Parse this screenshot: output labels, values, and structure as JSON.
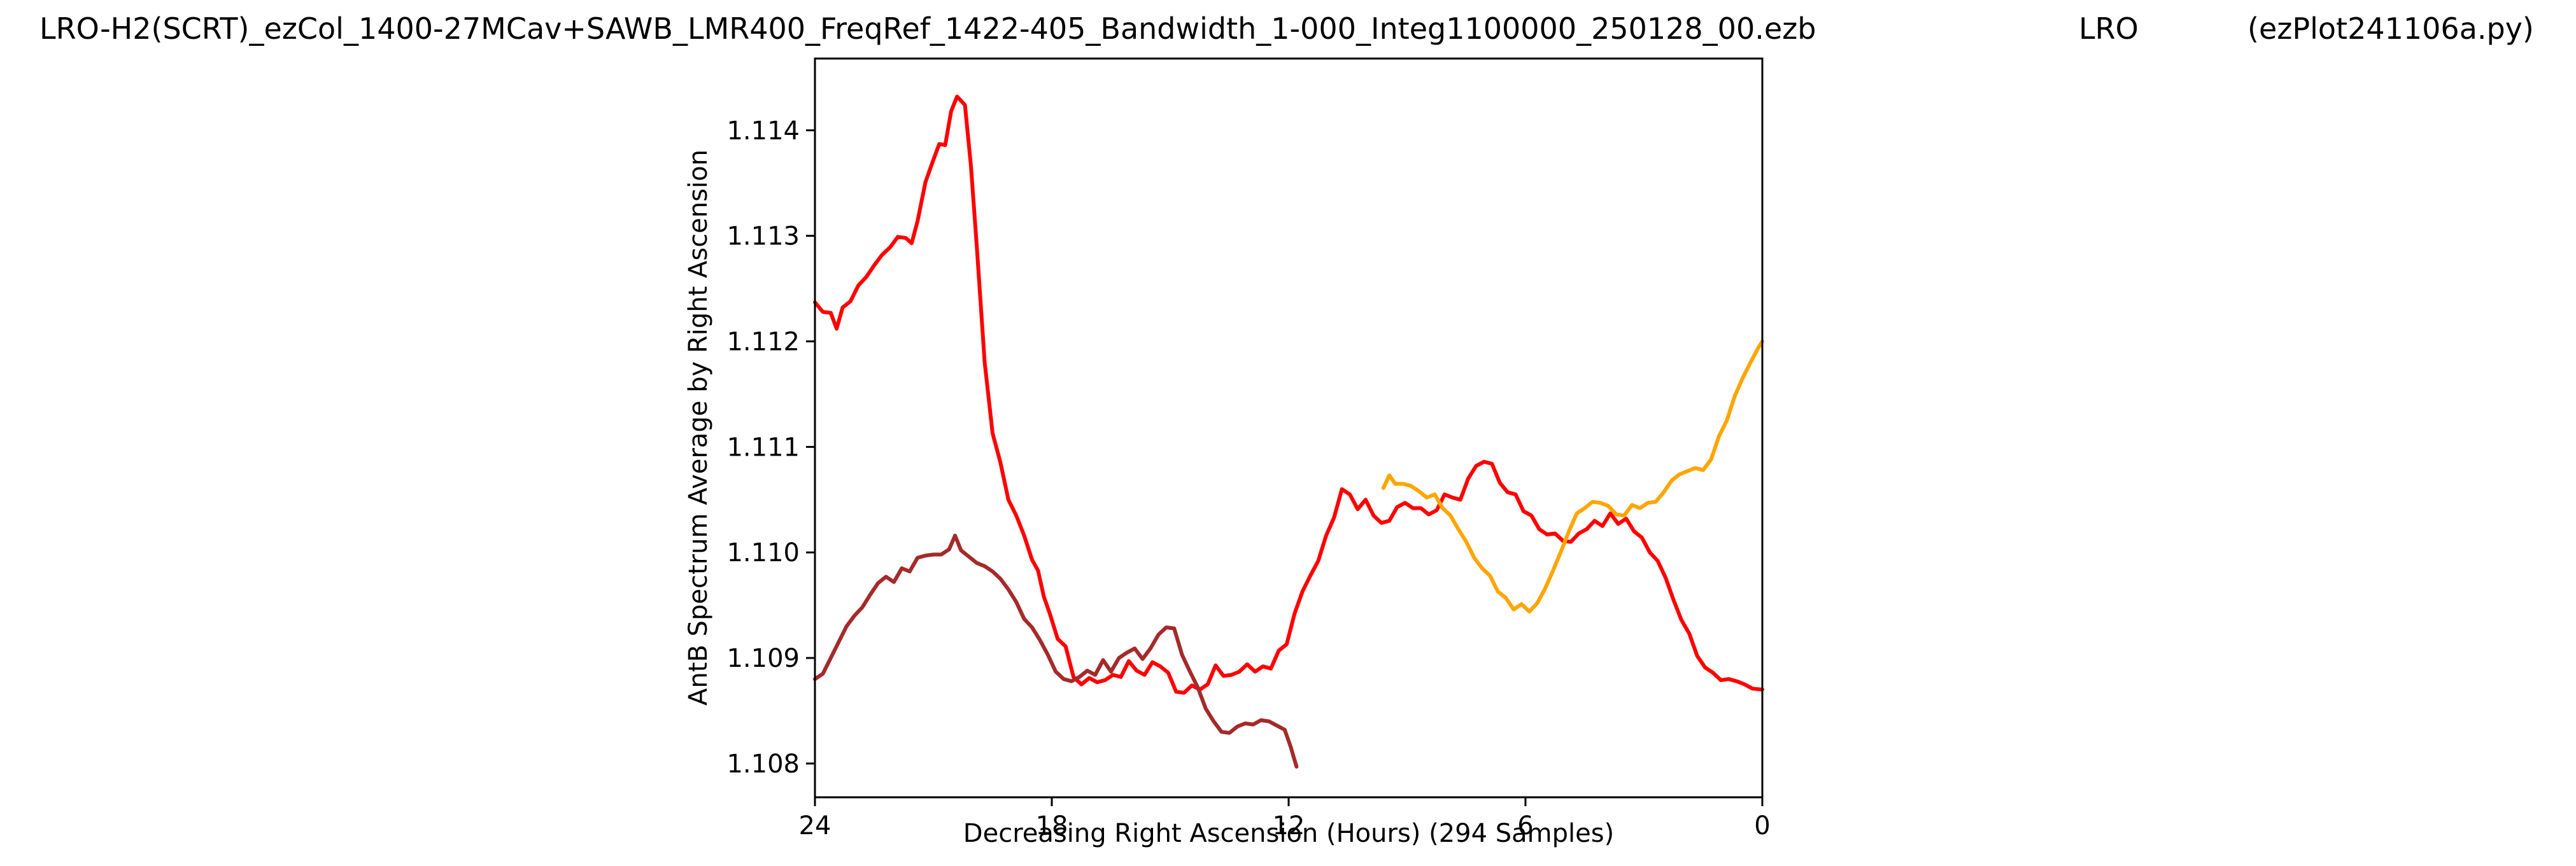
{
  "header": {
    "file": "LRO-H2(SCRT)_ezCol_1400-27MCav+SAWB_LMR400_FreqRef_1422-405_Bandwidth_1-000_Integ1100000_250128_00.ezb",
    "site": "LRO",
    "script": "(ezPlot241106a.py)"
  },
  "chart_data": {
    "type": "line",
    "title": "",
    "xlabel": "Decreasing Right Ascension (Hours) (294 Samples)",
    "ylabel": "AntB Spectrum Average by Right Ascension",
    "xlim": [
      24,
      0
    ],
    "ylim": [
      1.10768,
      1.11468
    ],
    "x_reversed": true,
    "x_ticks": [
      24,
      18,
      12,
      6,
      0
    ],
    "x_tick_labels": [
      "24",
      "18",
      "12",
      "6",
      "0"
    ],
    "y_ticks": [
      1.108,
      1.109,
      1.11,
      1.111,
      1.112,
      1.113,
      1.114
    ],
    "y_tick_labels": [
      "1.108",
      "1.109",
      "1.110",
      "1.111",
      "1.112",
      "1.113",
      "1.114"
    ],
    "grid": false,
    "legend": "none",
    "series": [
      {
        "color": "#ff0000",
        "x": [
          24.0,
          23.8,
          23.6,
          23.45,
          23.3,
          23.1,
          22.9,
          22.7,
          22.5,
          22.3,
          22.1,
          21.9,
          21.7,
          21.55,
          21.4,
          21.2,
          21.0,
          20.85,
          20.7,
          20.55,
          20.4,
          20.2,
          20.05,
          19.9,
          19.7,
          19.5,
          19.3,
          19.1,
          18.9,
          18.7,
          18.5,
          18.35,
          18.2,
          18.05,
          17.85,
          17.65,
          17.45,
          17.25,
          17.05,
          16.85,
          16.65,
          16.45,
          16.25,
          16.05,
          15.85,
          15.65,
          15.45,
          15.25,
          15.05,
          14.85,
          14.65,
          14.45,
          14.25,
          14.05,
          13.85,
          13.65,
          13.45,
          13.25,
          13.05,
          12.85,
          12.65,
          12.45,
          12.25,
          12.05,
          11.85,
          11.65,
          11.45,
          11.25,
          11.05,
          10.85,
          10.65,
          10.45,
          10.25,
          10.05,
          9.85,
          9.65,
          9.45,
          9.25,
          9.05,
          8.85,
          8.65,
          8.45,
          8.25,
          8.05,
          7.85,
          7.65,
          7.45,
          7.25,
          7.05,
          6.85,
          6.65,
          6.45,
          6.25,
          6.05,
          5.85,
          5.65,
          5.45,
          5.25,
          5.05,
          4.85,
          4.65,
          4.45,
          4.25,
          4.05,
          3.85,
          3.65,
          3.45,
          3.25,
          3.05,
          2.85,
          2.65,
          2.45,
          2.25,
          2.05,
          1.85,
          1.65,
          1.45,
          1.25,
          1.05,
          0.85,
          0.65,
          0.45,
          0.25,
          0.0
        ],
        "y": [
          1.11237,
          1.11228,
          1.11227,
          1.11212,
          1.11232,
          1.11238,
          1.11253,
          1.11261,
          1.11272,
          1.11282,
          1.11289,
          1.11299,
          1.11298,
          1.11293,
          1.11314,
          1.11351,
          1.11372,
          1.11387,
          1.11386,
          1.11418,
          1.11432,
          1.11424,
          1.11367,
          1.1129,
          1.1118,
          1.11113,
          1.11085,
          1.1105,
          1.11035,
          1.11016,
          1.10993,
          1.10983,
          1.10958,
          1.10942,
          1.10918,
          1.10911,
          1.10882,
          1.10875,
          1.10881,
          1.10877,
          1.10879,
          1.10884,
          1.10882,
          1.10897,
          1.10888,
          1.10884,
          1.10896,
          1.10892,
          1.10886,
          1.10868,
          1.10867,
          1.10874,
          1.1087,
          1.10875,
          1.10893,
          1.10883,
          1.10884,
          1.10887,
          1.10894,
          1.10887,
          1.10892,
          1.1089,
          1.10907,
          1.10913,
          1.10942,
          1.10963,
          1.10978,
          1.10992,
          1.11016,
          1.11033,
          1.1106,
          1.11055,
          1.11041,
          1.1105,
          1.11035,
          1.11028,
          1.1103,
          1.11043,
          1.11047,
          1.11042,
          1.11042,
          1.11036,
          1.1104,
          1.11055,
          1.11052,
          1.1105,
          1.1107,
          1.11082,
          1.11086,
          1.11084,
          1.11066,
          1.11057,
          1.11055,
          1.11039,
          1.11035,
          1.11022,
          1.11017,
          1.11018,
          1.11011,
          1.1101,
          1.11018,
          1.11022,
          1.1103,
          1.11025,
          1.11037,
          1.11027,
          1.11032,
          1.1102,
          1.11014,
          1.11,
          1.10992,
          1.10976,
          1.10955,
          1.10936,
          1.10923,
          1.10902,
          1.10891,
          1.10886,
          1.10879,
          1.1088,
          1.10878,
          1.10875,
          1.10871,
          1.1087
        ]
      },
      {
        "color": "#ffa500",
        "x": [
          9.6,
          9.45,
          9.3,
          9.1,
          8.9,
          8.7,
          8.5,
          8.3,
          8.1,
          7.9,
          7.7,
          7.5,
          7.3,
          7.1,
          6.9,
          6.7,
          6.5,
          6.3,
          6.1,
          5.9,
          5.7,
          5.5,
          5.3,
          5.1,
          4.9,
          4.7,
          4.5,
          4.3,
          4.1,
          3.9,
          3.7,
          3.5,
          3.3,
          3.1,
          2.9,
          2.7,
          2.5,
          2.3,
          2.1,
          1.9,
          1.7,
          1.5,
          1.3,
          1.1,
          0.9,
          0.7,
          0.5,
          0.3,
          0.1,
          0.0
        ],
        "y": [
          1.11061,
          1.11073,
          1.11065,
          1.11065,
          1.11063,
          1.11058,
          1.11052,
          1.11055,
          1.11042,
          1.11035,
          1.11022,
          1.1101,
          1.10995,
          1.10985,
          1.10978,
          1.10963,
          1.10957,
          1.10946,
          1.10951,
          1.10944,
          1.10952,
          1.10966,
          1.10983,
          1.11001,
          1.1102,
          1.11037,
          1.11042,
          1.11048,
          1.11047,
          1.11044,
          1.11036,
          1.11035,
          1.11045,
          1.11042,
          1.11047,
          1.11048,
          1.11057,
          1.11068,
          1.11074,
          1.11077,
          1.1108,
          1.11078,
          1.11088,
          1.1111,
          1.11125,
          1.11148,
          1.11165,
          1.1118,
          1.11194,
          1.112
        ]
      },
      {
        "color": "#a52a2a",
        "x": [
          24.0,
          23.8,
          23.6,
          23.4,
          23.2,
          23.0,
          22.8,
          22.6,
          22.4,
          22.2,
          22.0,
          21.8,
          21.6,
          21.4,
          21.2,
          21.0,
          20.8,
          20.6,
          20.45,
          20.3,
          20.1,
          19.9,
          19.7,
          19.5,
          19.3,
          19.1,
          18.9,
          18.7,
          18.5,
          18.3,
          18.1,
          17.9,
          17.7,
          17.5,
          17.3,
          17.1,
          16.9,
          16.7,
          16.5,
          16.3,
          16.1,
          15.9,
          15.7,
          15.5,
          15.3,
          15.1,
          14.9,
          14.7,
          14.5,
          14.3,
          14.1,
          13.9,
          13.7,
          13.5,
          13.3,
          13.1,
          12.9,
          12.7,
          12.5,
          12.3,
          12.1,
          11.95,
          11.8
        ],
        "y": [
          1.1088,
          1.10885,
          1.109,
          1.10915,
          1.1093,
          1.1094,
          1.10948,
          1.1096,
          1.10971,
          1.10977,
          1.10972,
          1.10985,
          1.10982,
          1.10995,
          1.10997,
          1.10998,
          1.10998,
          1.11003,
          1.11016,
          1.11002,
          1.10996,
          1.1099,
          1.10987,
          1.10982,
          1.10975,
          1.10965,
          1.10953,
          1.10937,
          1.10929,
          1.10917,
          1.10903,
          1.10887,
          1.1088,
          1.10878,
          1.10882,
          1.10888,
          1.10884,
          1.10898,
          1.10887,
          1.109,
          1.10905,
          1.10909,
          1.10899,
          1.10909,
          1.10922,
          1.10929,
          1.10928,
          1.10903,
          1.10887,
          1.10872,
          1.10852,
          1.1084,
          1.1083,
          1.10829,
          1.10835,
          1.10838,
          1.10837,
          1.10841,
          1.1084,
          1.10836,
          1.10832,
          1.10816,
          1.10797
        ]
      }
    ]
  }
}
